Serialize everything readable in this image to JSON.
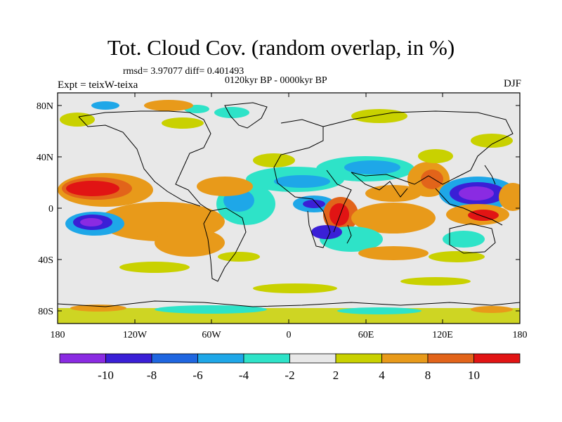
{
  "title": "Tot. Cloud Cov. (random overlap, in %)",
  "stats": "rmsd= 3.97077 diff= 0.401493",
  "period": "0120kyr BP - 0000kyr BP",
  "expt": "Expt = teixW-teixa",
  "season": "DJF",
  "lat_labels": [
    "80N",
    "40N",
    "0",
    "40S",
    "80S"
  ],
  "lon_labels": [
    "180",
    "120W",
    "60W",
    "0",
    "60E",
    "120E",
    "180"
  ],
  "colorbar": {
    "labels": [
      "-10",
      "-8",
      "-6",
      "-4",
      "-2",
      "2",
      "4",
      "8",
      "10"
    ],
    "colors": [
      "#8a2be2",
      "#3a1fd6",
      "#1f66e0",
      "#1ea7e8",
      "#2ee3c8",
      "#e8e8e8",
      "#c9d100",
      "#e89a1a",
      "#e2641a",
      "#e11414"
    ]
  },
  "map_colors": {
    "ocean_bg": "#e8e8e8",
    "coast": "#000000"
  }
}
